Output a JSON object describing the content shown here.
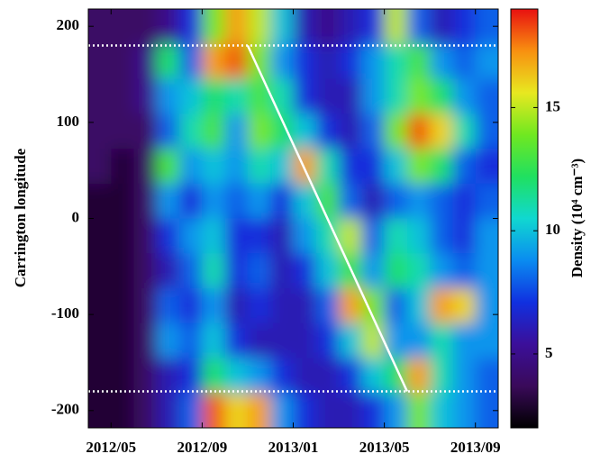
{
  "chart_data": {
    "type": "heatmap",
    "ylabel": "Carrington longitude",
    "colorbar_label": "Density (10⁴ cm⁻³)",
    "xlim": [
      "2012/04",
      "2013/10"
    ],
    "xticks": [
      "2012/05",
      "2012/09",
      "2013/01",
      "2013/05",
      "2013/09"
    ],
    "ylim": [
      -218,
      218
    ],
    "yticks": [
      200,
      100,
      0,
      -100,
      -200
    ],
    "zlim": [
      2,
      19
    ],
    "zticks": [
      5,
      10,
      15
    ],
    "colormap": [
      "#000000",
      "#3a0a5a",
      "#3b0f9a",
      "#1030e0",
      "#0a8cf0",
      "#10d8d0",
      "#20e060",
      "#70e820",
      "#e8e820",
      "#f89010",
      "#e81010"
    ],
    "hlines": [
      180,
      -180
    ],
    "trend_line": {
      "x": [
        "2012/11",
        "2013/06"
      ],
      "y": [
        180,
        -180
      ],
      "color": "#ffffff"
    },
    "z": [
      [
        4,
        4,
        4,
        5,
        7,
        14,
        17,
        15,
        10,
        6,
        5,
        6,
        7,
        15,
        8,
        6,
        7,
        8
      ],
      [
        4,
        4,
        5,
        12,
        8,
        17,
        18,
        14,
        9,
        7,
        6,
        7,
        9,
        11,
        13,
        9,
        8,
        9
      ],
      [
        4,
        4,
        5,
        9,
        10,
        12,
        11,
        13,
        11,
        7,
        6,
        6,
        9,
        11,
        14,
        12,
        9,
        8
      ],
      [
        4,
        4,
        4,
        8,
        11,
        13,
        9,
        14,
        12,
        10,
        7,
        6,
        8,
        14,
        18,
        16,
        11,
        8
      ],
      [
        4,
        3,
        4,
        13,
        9,
        10,
        9,
        11,
        10,
        17,
        11,
        7,
        7,
        10,
        14,
        12,
        8,
        7
      ],
      [
        3,
        3,
        4,
        9,
        7,
        9,
        8,
        9,
        7,
        10,
        13,
        8,
        6,
        8,
        9,
        8,
        7,
        8
      ],
      [
        3,
        3,
        4,
        7,
        9,
        10,
        7,
        7,
        6,
        9,
        11,
        15,
        8,
        11,
        10,
        8,
        7,
        9
      ],
      [
        3,
        3,
        4,
        6,
        8,
        11,
        7,
        8,
        6,
        7,
        10,
        13,
        9,
        12,
        11,
        9,
        8,
        9
      ],
      [
        3,
        3,
        4,
        8,
        7,
        9,
        6,
        7,
        6,
        6,
        8,
        17,
        14,
        8,
        10,
        17,
        16,
        9
      ],
      [
        3,
        3,
        4,
        9,
        8,
        10,
        7,
        6,
        6,
        6,
        7,
        10,
        15,
        9,
        9,
        11,
        9,
        9
      ],
      [
        3,
        3,
        4,
        6,
        7,
        12,
        10,
        9,
        7,
        6,
        6,
        7,
        10,
        12,
        17,
        11,
        9,
        8
      ],
      [
        3,
        3,
        4,
        6,
        8,
        18,
        16,
        17,
        9,
        7,
        6,
        6,
        7,
        9,
        14,
        10,
        9,
        8
      ]
    ]
  }
}
